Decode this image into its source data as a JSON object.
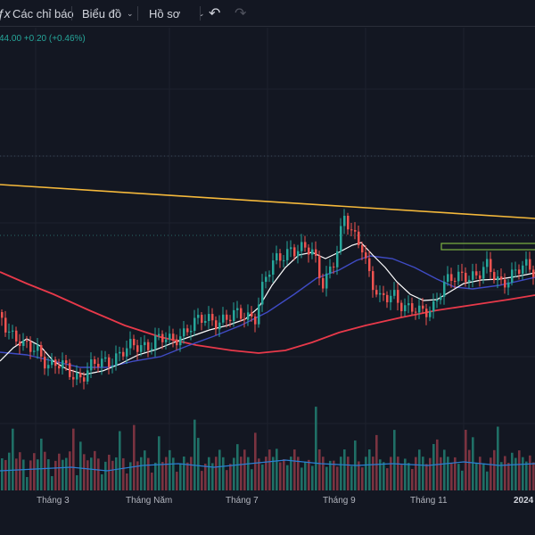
{
  "toolbar": {
    "indicators_label": "Các chỉ báo",
    "chart_label": "Biểu đồ",
    "profile_label": "Hồ sơ"
  },
  "price_info": "44.00 +0.20 (+0.46%)",
  "time_axis": {
    "labels": [
      "Tháng 3",
      "Tháng Năm",
      "Tháng 7",
      "Tháng 9",
      "Tháng 11",
      "2024"
    ]
  },
  "colors": {
    "background": "#131722",
    "up": "#26a69a",
    "down": "#ef5350",
    "ma_short": "#ffffff",
    "ma_mid": "#3f4bc4",
    "ma_long": "#e8394a",
    "trendline": "#f5b93b",
    "zone": "#7cb342"
  }
}
